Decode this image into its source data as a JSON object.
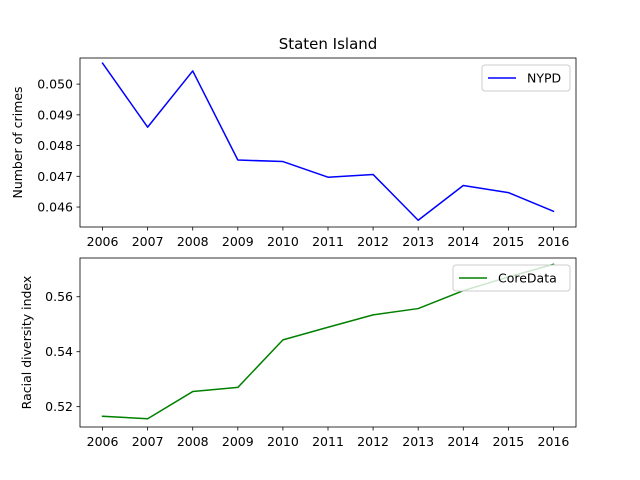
{
  "chart_data": [
    {
      "type": "line",
      "title": "Staten Island",
      "xlabel": "",
      "ylabel": "Number of crimes",
      "x": [
        2006,
        2007,
        2008,
        2009,
        2010,
        2011,
        2012,
        2013,
        2014,
        2015,
        2016
      ],
      "x_tick_labels": [
        "2006",
        "2007",
        "2008",
        "2009",
        "2010",
        "2011",
        "2012",
        "2013",
        "2014",
        "2015",
        "2016"
      ],
      "y_ticks": [
        0.046,
        0.047,
        0.048,
        0.049,
        0.05
      ],
      "y_tick_labels": [
        "0.046",
        "0.047",
        "0.048",
        "0.049",
        "0.050"
      ],
      "ylim": [
        0.04535,
        0.05085
      ],
      "grid": false,
      "legend_position": "upper right",
      "series": [
        {
          "name": "NYPD",
          "color": "#0000ff",
          "values": [
            0.05068,
            0.0486,
            0.05043,
            0.04753,
            0.04748,
            0.04697,
            0.04706,
            0.04557,
            0.0467,
            0.04647,
            0.04586
          ]
        }
      ]
    },
    {
      "type": "line",
      "title": "",
      "xlabel": "",
      "ylabel": "Racial diversity index",
      "x": [
        2006,
        2007,
        2008,
        2009,
        2010,
        2011,
        2012,
        2013,
        2014,
        2015,
        2016
      ],
      "x_tick_labels": [
        "2006",
        "2007",
        "2008",
        "2009",
        "2010",
        "2011",
        "2012",
        "2013",
        "2014",
        "2015",
        "2016"
      ],
      "y_ticks": [
        0.52,
        0.54,
        0.56
      ],
      "y_tick_labels": [
        "0.52",
        "0.54",
        "0.56"
      ],
      "ylim": [
        0.5126,
        0.5741
      ],
      "grid": false,
      "legend_position": "upper right",
      "series": [
        {
          "name": "CoreData",
          "color": "#008000",
          "values": [
            0.5165,
            0.5156,
            0.5255,
            0.527,
            0.5443,
            0.5489,
            0.5534,
            0.5557,
            0.5622,
            0.5672,
            0.5718
          ]
        }
      ]
    }
  ]
}
